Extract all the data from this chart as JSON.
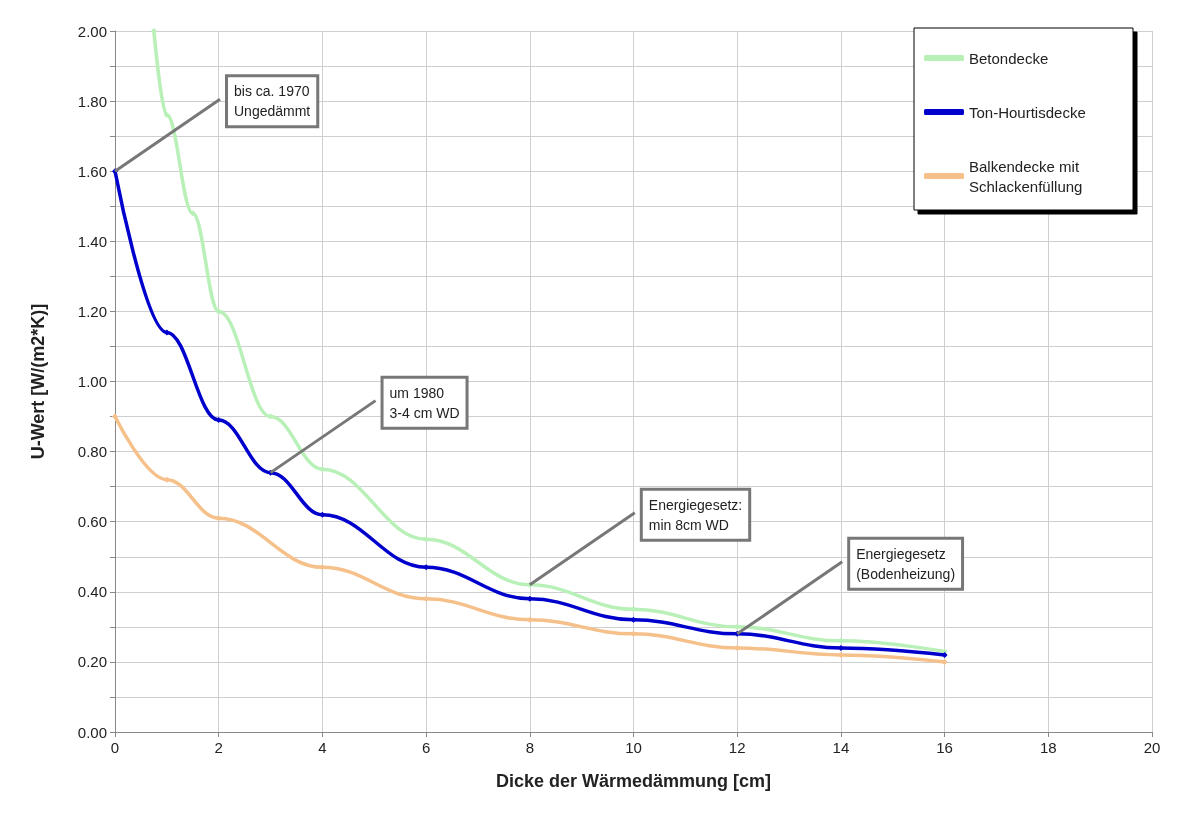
{
  "chart_data": {
    "type": "line",
    "xlabel": "Dicke der Wärmedämmung [cm]",
    "ylabel": "U-Wert [W/(m2*K)]",
    "series": [
      {
        "name": "Betondecke",
        "color": "#b8f0b8",
        "x": [
          0.75,
          1,
          1.5,
          2,
          3,
          4,
          6,
          8,
          10,
          12,
          14,
          16
        ],
        "values": [
          2.0,
          1.76,
          1.48,
          1.2,
          0.9,
          0.75,
          0.55,
          0.42,
          0.35,
          0.3,
          0.26,
          0.23
        ]
      },
      {
        "name": "Ton-Hourtisdecke",
        "color": "#0000cc",
        "x": [
          0,
          1,
          2,
          3,
          4,
          6,
          8,
          10,
          12,
          14,
          16
        ],
        "values": [
          1.6,
          1.14,
          0.89,
          0.74,
          0.62,
          0.47,
          0.38,
          0.32,
          0.28,
          0.24,
          0.22
        ]
      },
      {
        "name": "Balkendecke mit Schlackenfüllung",
        "color": "#f5c08a",
        "x": [
          0,
          1,
          2,
          4,
          6,
          8,
          10,
          12,
          14,
          16
        ],
        "values": [
          0.9,
          0.72,
          0.61,
          0.47,
          0.38,
          0.32,
          0.28,
          0.24,
          0.22,
          0.2
        ]
      }
    ],
    "xlim": [
      0,
      20
    ],
    "xticks": [
      0,
      2,
      4,
      6,
      8,
      10,
      12,
      14,
      16,
      18,
      20
    ],
    "ylim": [
      0,
      2
    ],
    "yticks": [
      {
        "value": 0,
        "label": "0.00"
      },
      {
        "value": 0.2,
        "label": "0.20"
      },
      {
        "value": 0.4,
        "label": "0.40"
      },
      {
        "value": 0.6,
        "label": "0.60"
      },
      {
        "value": 0.8,
        "label": "0.80"
      },
      {
        "value": 1,
        "label": "1.00"
      },
      {
        "value": 1.2,
        "label": "1.20"
      },
      {
        "value": 1.4,
        "label": "1.40"
      },
      {
        "value": 1.6,
        "label": "1.60"
      },
      {
        "value": 1.8,
        "label": "1.80"
      },
      {
        "value": 2,
        "label": "2.00"
      }
    ],
    "grid": true,
    "legend": "top right",
    "marker": "diamond",
    "annotations": [
      {
        "text": "bis ca. 1970\nUngedämmt",
        "x": 0,
        "y": 1.6
      },
      {
        "text": "um 1980\n3-4 cm WD",
        "x": 3,
        "y": 0.74
      },
      {
        "text": "Energiegesetz:\nmin 8cm WD",
        "x": 8,
        "y": 0.42
      },
      {
        "text": "Energiegesetz\n(Bodenheizung)",
        "x": 12,
        "y": 0.28
      }
    ]
  }
}
